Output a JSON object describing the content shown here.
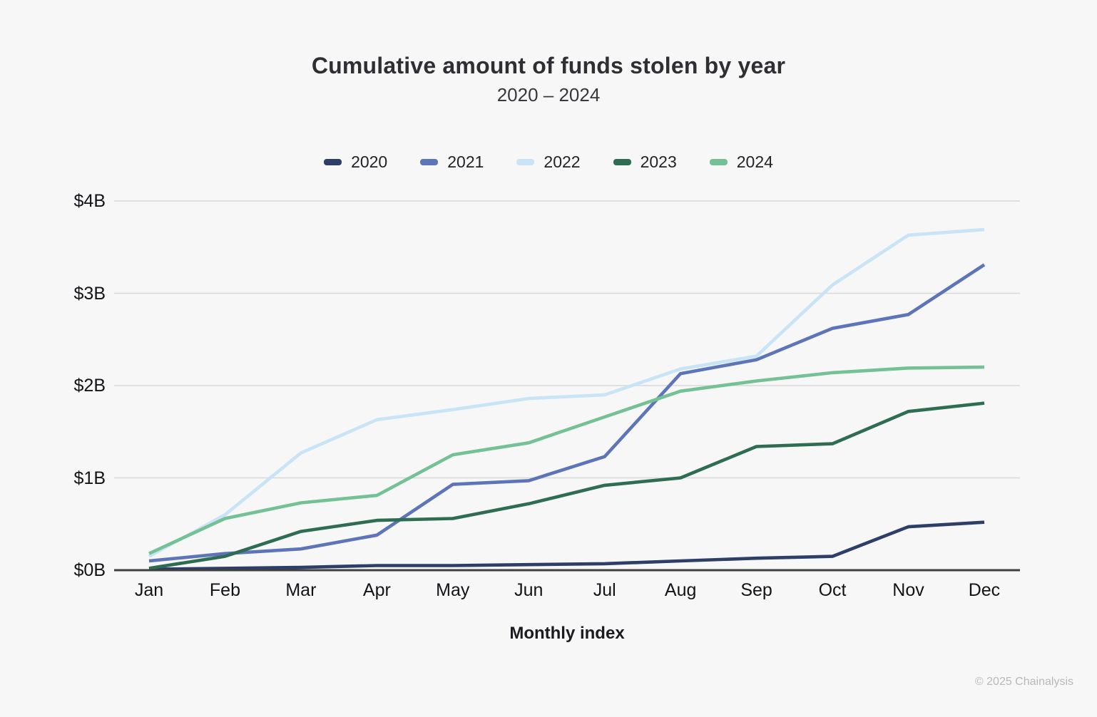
{
  "chart_data": {
    "type": "line",
    "title": "Cumulative amount of funds stolen by year",
    "subtitle": "2020 – 2024",
    "xlabel": "Monthly index",
    "unit": "USD billions",
    "categories": [
      "Jan",
      "Feb",
      "Mar",
      "Apr",
      "May",
      "Jun",
      "Jul",
      "Aug",
      "Sep",
      "Oct",
      "Nov",
      "Dec"
    ],
    "y_ticks": [
      "$0B",
      "$1B",
      "$2B",
      "$3B",
      "$4B"
    ],
    "ylim": [
      0,
      4
    ],
    "grid": "horizontal",
    "legend_position": "top",
    "series": [
      {
        "name": "2020",
        "color": "#2d3f69",
        "values": [
          0.01,
          0.02,
          0.03,
          0.05,
          0.05,
          0.06,
          0.07,
          0.1,
          0.13,
          0.15,
          0.47,
          0.52
        ]
      },
      {
        "name": "2021",
        "color": "#5e74b8",
        "values": [
          0.1,
          0.18,
          0.23,
          0.38,
          0.93,
          0.97,
          1.23,
          2.13,
          2.28,
          2.62,
          2.77,
          3.31
        ]
      },
      {
        "name": "2022",
        "color": "#c9e4f6",
        "values": [
          0.15,
          0.6,
          1.27,
          1.63,
          1.74,
          1.86,
          1.9,
          2.18,
          2.32,
          3.09,
          3.63,
          3.69
        ]
      },
      {
        "name": "2023",
        "color": "#2e6d52",
        "values": [
          0.02,
          0.15,
          0.42,
          0.54,
          0.56,
          0.72,
          0.92,
          1.0,
          1.34,
          1.37,
          1.72,
          1.81
        ]
      },
      {
        "name": "2024",
        "color": "#73c195",
        "values": [
          0.18,
          0.56,
          0.73,
          0.81,
          1.25,
          1.38,
          1.66,
          1.94,
          2.05,
          2.14,
          2.19,
          2.2
        ]
      }
    ]
  },
  "footer": {
    "copyright": "© 2025 Chainalysis"
  }
}
